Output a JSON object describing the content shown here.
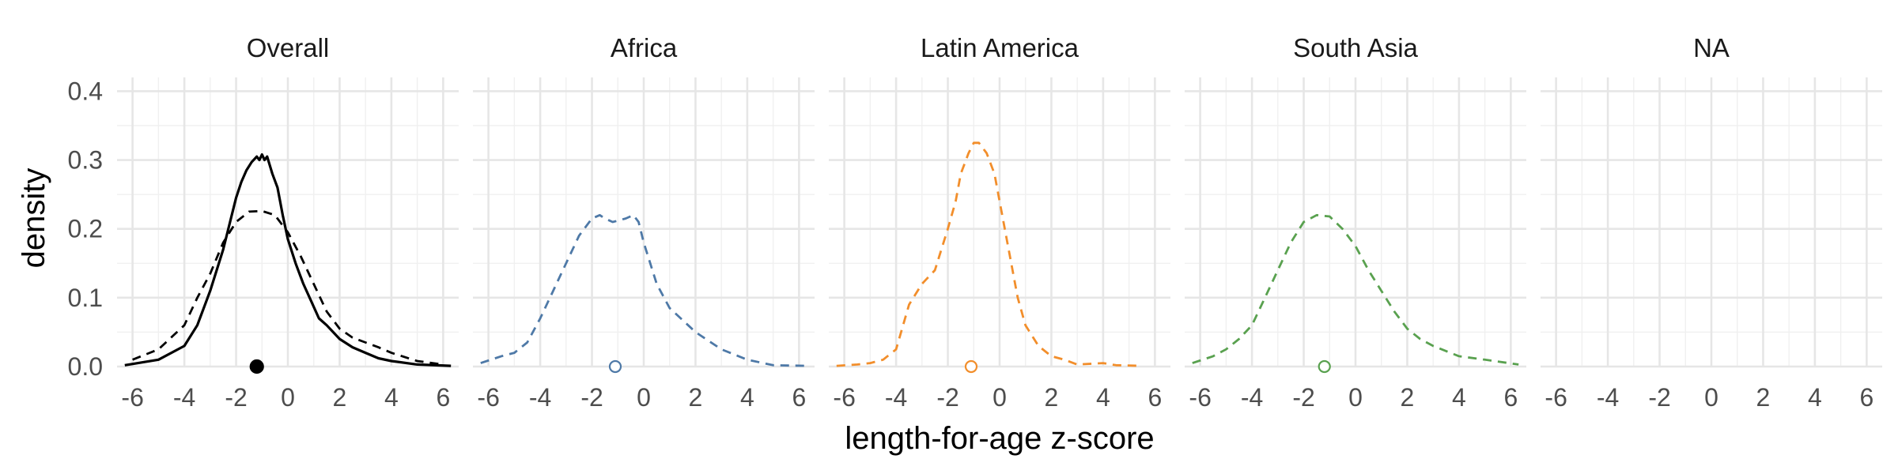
{
  "chart_data": {
    "type": "line",
    "subtype": "density, faceted",
    "xlabel": "length-for-age z-score",
    "ylabel": "density",
    "xlim": [
      -6.6,
      6.6
    ],
    "ylim": [
      0,
      0.42
    ],
    "xticks": [
      -6,
      -4,
      -2,
      0,
      2,
      4,
      6
    ],
    "xtick_labels": [
      "-6",
      "-4",
      "-2",
      "0",
      "2",
      "4",
      "6"
    ],
    "yticks": [
      0,
      0.1,
      0.2,
      0.3,
      0.4
    ],
    "ytick_labels": [
      "0.0",
      "0.1",
      "0.2",
      "0.3",
      "0.4"
    ],
    "grid": true,
    "legend": "none",
    "panels": [
      {
        "title": "Overall",
        "series": [
          {
            "style": "solid",
            "color": "#000000",
            "x": [
              -6.3,
              -5,
              -4,
              -3.5,
              -3,
              -2.5,
              -2,
              -1.8,
              -1.6,
              -1.4,
              -1.2,
              -1.1,
              -1,
              -0.9,
              -0.8,
              -0.6,
              -0.4,
              -0.2,
              0,
              0.3,
              0.6,
              0.9,
              1.2,
              1.5,
              2,
              2.5,
              3,
              3.5,
              4,
              5,
              6.3
            ],
            "y": [
              0.002,
              0.01,
              0.03,
              0.06,
              0.11,
              0.17,
              0.245,
              0.268,
              0.285,
              0.297,
              0.305,
              0.3,
              0.308,
              0.3,
              0.305,
              0.28,
              0.26,
              0.22,
              0.185,
              0.15,
              0.12,
              0.095,
              0.07,
              0.06,
              0.04,
              0.028,
              0.02,
              0.012,
              0.008,
              0.003,
              0.001
            ]
          },
          {
            "style": "dashed",
            "color": "#000000",
            "x": [
              -6,
              -5,
              -4,
              -3.5,
              -3,
              -2.5,
              -2,
              -1.5,
              -1,
              -0.5,
              0,
              0.5,
              1,
              1.5,
              2,
              2.5,
              3,
              3.5,
              4,
              5,
              6
            ],
            "y": [
              0.01,
              0.025,
              0.06,
              0.1,
              0.135,
              0.18,
              0.21,
              0.225,
              0.226,
              0.22,
              0.195,
              0.16,
              0.12,
              0.08,
              0.055,
              0.042,
              0.035,
              0.028,
              0.02,
              0.008,
              0.003
            ]
          }
        ],
        "points": [
          {
            "x": -1.2,
            "y": 0.0,
            "filled": true,
            "color": "#000000"
          }
        ]
      },
      {
        "title": "Africa",
        "series": [
          {
            "style": "dashed",
            "color": "#4e79a7",
            "x": [
              -6.3,
              -5.5,
              -5,
              -4.5,
              -4,
              -3.5,
              -3,
              -2.5,
              -2,
              -1.7,
              -1.5,
              -1.2,
              -1,
              -0.7,
              -0.4,
              -0.2,
              0,
              0.5,
              1,
              2,
              3,
              4,
              5,
              6.3
            ],
            "y": [
              0.005,
              0.015,
              0.02,
              0.035,
              0.07,
              0.11,
              0.15,
              0.19,
              0.215,
              0.22,
              0.215,
              0.21,
              0.212,
              0.215,
              0.22,
              0.21,
              0.18,
              0.12,
              0.085,
              0.05,
              0.025,
              0.01,
              0.002,
              0.001
            ]
          }
        ],
        "points": [
          {
            "x": -1.1,
            "y": 0.0,
            "filled": false,
            "color": "#4e79a7"
          }
        ]
      },
      {
        "title": "Latin America",
        "series": [
          {
            "style": "dashed",
            "color": "#f28e2b",
            "x": [
              -6.3,
              -5.5,
              -5,
              -4.5,
              -4,
              -3.5,
              -3,
              -2.5,
              -2,
              -1.7,
              -1.5,
              -1.2,
              -1,
              -0.8,
              -0.5,
              -0.2,
              0,
              0.3,
              0.7,
              1,
              1.5,
              2,
              2.5,
              3,
              4,
              4.5,
              5.5
            ],
            "y": [
              0.001,
              0.003,
              0.005,
              0.01,
              0.025,
              0.09,
              0.12,
              0.14,
              0.2,
              0.24,
              0.28,
              0.31,
              0.325,
              0.325,
              0.31,
              0.28,
              0.24,
              0.18,
              0.1,
              0.06,
              0.03,
              0.015,
              0.01,
              0.003,
              0.005,
              0.002,
              0.001
            ]
          }
        ],
        "points": [
          {
            "x": -1.1,
            "y": 0.0,
            "filled": false,
            "color": "#f28e2b"
          }
        ]
      },
      {
        "title": "South Asia",
        "series": [
          {
            "style": "dashed",
            "color": "#59a14f",
            "x": [
              -6.3,
              -5.5,
              -5,
              -4.5,
              -4,
              -3.5,
              -3,
              -2.5,
              -2,
              -1.5,
              -1,
              -0.5,
              0,
              0.5,
              1,
              1.5,
              2,
              2.5,
              3,
              4,
              5,
              6.3
            ],
            "y": [
              0.005,
              0.015,
              0.025,
              0.04,
              0.06,
              0.1,
              0.14,
              0.18,
              0.21,
              0.22,
              0.218,
              0.2,
              0.175,
              0.14,
              0.11,
              0.08,
              0.055,
              0.04,
              0.03,
              0.015,
              0.01,
              0.003
            ]
          }
        ],
        "points": [
          {
            "x": -1.2,
            "y": 0.0,
            "filled": false,
            "color": "#59a14f"
          }
        ]
      },
      {
        "title": "NA",
        "series": [],
        "points": []
      }
    ]
  }
}
